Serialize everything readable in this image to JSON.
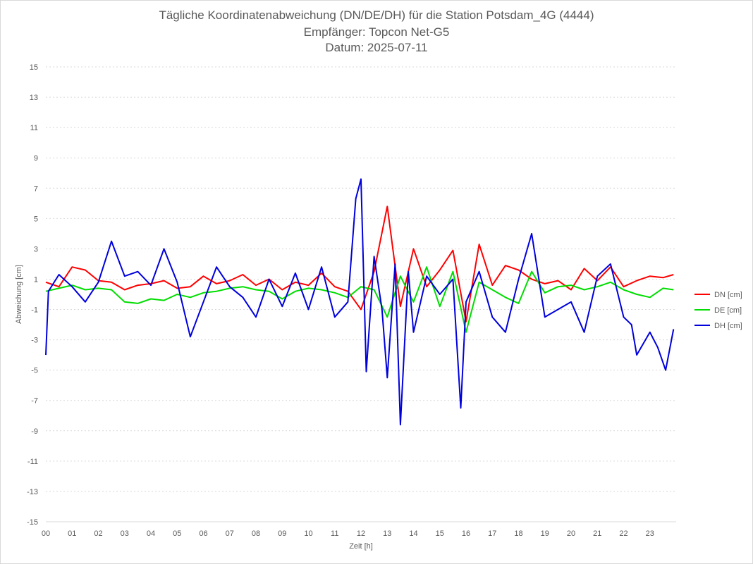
{
  "chart_data": {
    "type": "line",
    "title": "Tägliche Koordinatenabweichung (DN/DE/DH) für die Station Potsdam_4G (4444)",
    "subtitle_1": "Empfänger: Topcon Net-G5",
    "subtitle_2": "Datum: 2025-07-11",
    "xlabel": "Zeit [h]",
    "ylabel": "Abweichung [cm]",
    "xlim": [
      0,
      24
    ],
    "ylim": [
      -15,
      15
    ],
    "x_ticks": [
      "00",
      "01",
      "02",
      "03",
      "04",
      "05",
      "06",
      "07",
      "08",
      "09",
      "10",
      "11",
      "12",
      "13",
      "14",
      "15",
      "16",
      "17",
      "18",
      "19",
      "20",
      "21",
      "22",
      "23"
    ],
    "y_ticks": [
      "15",
      "13",
      "11",
      "9",
      "7",
      "5",
      "3",
      "1",
      "-1",
      "-3",
      "-5",
      "-7",
      "-9",
      "-11",
      "-13",
      "-15"
    ],
    "grid": true,
    "legend_position": "right",
    "series": [
      {
        "name": "DN [cm]",
        "color": "#ff0000",
        "x": [
          0,
          0.5,
          1,
          1.5,
          2,
          2.5,
          3,
          3.5,
          4,
          4.5,
          5,
          5.5,
          6,
          6.5,
          7,
          7.5,
          8,
          8.5,
          9,
          9.5,
          10,
          10.5,
          11,
          11.5,
          12,
          12.5,
          13,
          13.5,
          14,
          14.5,
          15,
          15.5,
          16,
          16.5,
          17,
          17.5,
          18,
          18.5,
          19,
          19.5,
          20,
          20.5,
          21,
          21.5,
          22,
          22.5,
          23,
          23.5,
          23.9
        ],
        "values": [
          0.8,
          0.5,
          1.8,
          1.6,
          0.9,
          0.8,
          0.3,
          0.6,
          0.7,
          0.9,
          0.4,
          0.5,
          1.2,
          0.7,
          0.9,
          1.3,
          0.6,
          1.0,
          0.3,
          0.8,
          0.6,
          1.4,
          0.5,
          0.2,
          -1.0,
          1.5,
          5.8,
          -0.8,
          3.0,
          0.5,
          1.6,
          2.9,
          -1.8,
          3.3,
          0.6,
          1.9,
          1.6,
          1.0,
          0.7,
          0.9,
          0.3,
          1.7,
          0.9,
          1.8,
          0.5,
          0.9,
          1.2,
          1.1,
          1.3
        ]
      },
      {
        "name": "DE [cm]",
        "color": "#00dd00",
        "x": [
          0,
          0.5,
          1,
          1.5,
          2,
          2.5,
          3,
          3.5,
          4,
          4.5,
          5,
          5.5,
          6,
          6.5,
          7,
          7.5,
          8,
          8.5,
          9,
          9.5,
          10,
          10.5,
          11,
          11.5,
          12,
          12.5,
          13,
          13.5,
          14,
          14.5,
          15,
          15.5,
          16,
          16.5,
          17,
          17.5,
          18,
          18.5,
          19,
          19.5,
          20,
          20.5,
          21,
          21.5,
          22,
          22.5,
          23,
          23.5,
          23.9
        ],
        "values": [
          0.2,
          0.4,
          0.6,
          0.3,
          0.4,
          0.3,
          -0.5,
          -0.6,
          -0.3,
          -0.4,
          0.0,
          -0.2,
          0.1,
          0.2,
          0.4,
          0.5,
          0.3,
          0.2,
          -0.3,
          0.2,
          0.4,
          0.3,
          0.1,
          -0.2,
          0.5,
          0.3,
          -1.5,
          1.2,
          -0.5,
          1.8,
          -0.8,
          1.5,
          -2.5,
          0.8,
          0.3,
          -0.2,
          -0.6,
          1.5,
          0.1,
          0.5,
          0.6,
          0.3,
          0.5,
          0.8,
          0.3,
          0.0,
          -0.2,
          0.4,
          0.3
        ]
      },
      {
        "name": "DH [cm]",
        "color": "#0000dd",
        "x": [
          0,
          0.1,
          0.5,
          1,
          1.5,
          2,
          2.5,
          3,
          3.5,
          4,
          4.5,
          5,
          5.5,
          6,
          6.5,
          7,
          7.5,
          8,
          8.5,
          9,
          9.5,
          10,
          10.5,
          11,
          11.5,
          11.8,
          12,
          12.2,
          12.5,
          12.8,
          13,
          13.3,
          13.5,
          13.8,
          14,
          14.5,
          15,
          15.5,
          15.8,
          16,
          16.5,
          17,
          17.5,
          18,
          18.5,
          19,
          19.5,
          20,
          20.5,
          21,
          21.5,
          22,
          22.3,
          22.5,
          23,
          23.3,
          23.6,
          23.9
        ],
        "values": [
          -4.0,
          0.2,
          1.3,
          0.5,
          -0.5,
          0.8,
          3.5,
          1.2,
          1.5,
          0.6,
          3.0,
          0.8,
          -2.8,
          -0.5,
          1.8,
          0.5,
          -0.2,
          -1.5,
          1.0,
          -0.8,
          1.4,
          -1.0,
          1.8,
          -1.5,
          -0.5,
          6.3,
          7.6,
          -5.1,
          2.5,
          -1.0,
          -5.5,
          2.0,
          -8.6,
          1.5,
          -2.5,
          1.2,
          0.0,
          1.0,
          -7.5,
          -0.5,
          1.5,
          -1.5,
          -2.5,
          1.0,
          4.0,
          -1.5,
          -1.0,
          -0.5,
          -2.5,
          1.2,
          2.0,
          -1.5,
          -2.0,
          -4.0,
          -2.5,
          -3.5,
          -5.0,
          -2.3
        ]
      }
    ]
  }
}
